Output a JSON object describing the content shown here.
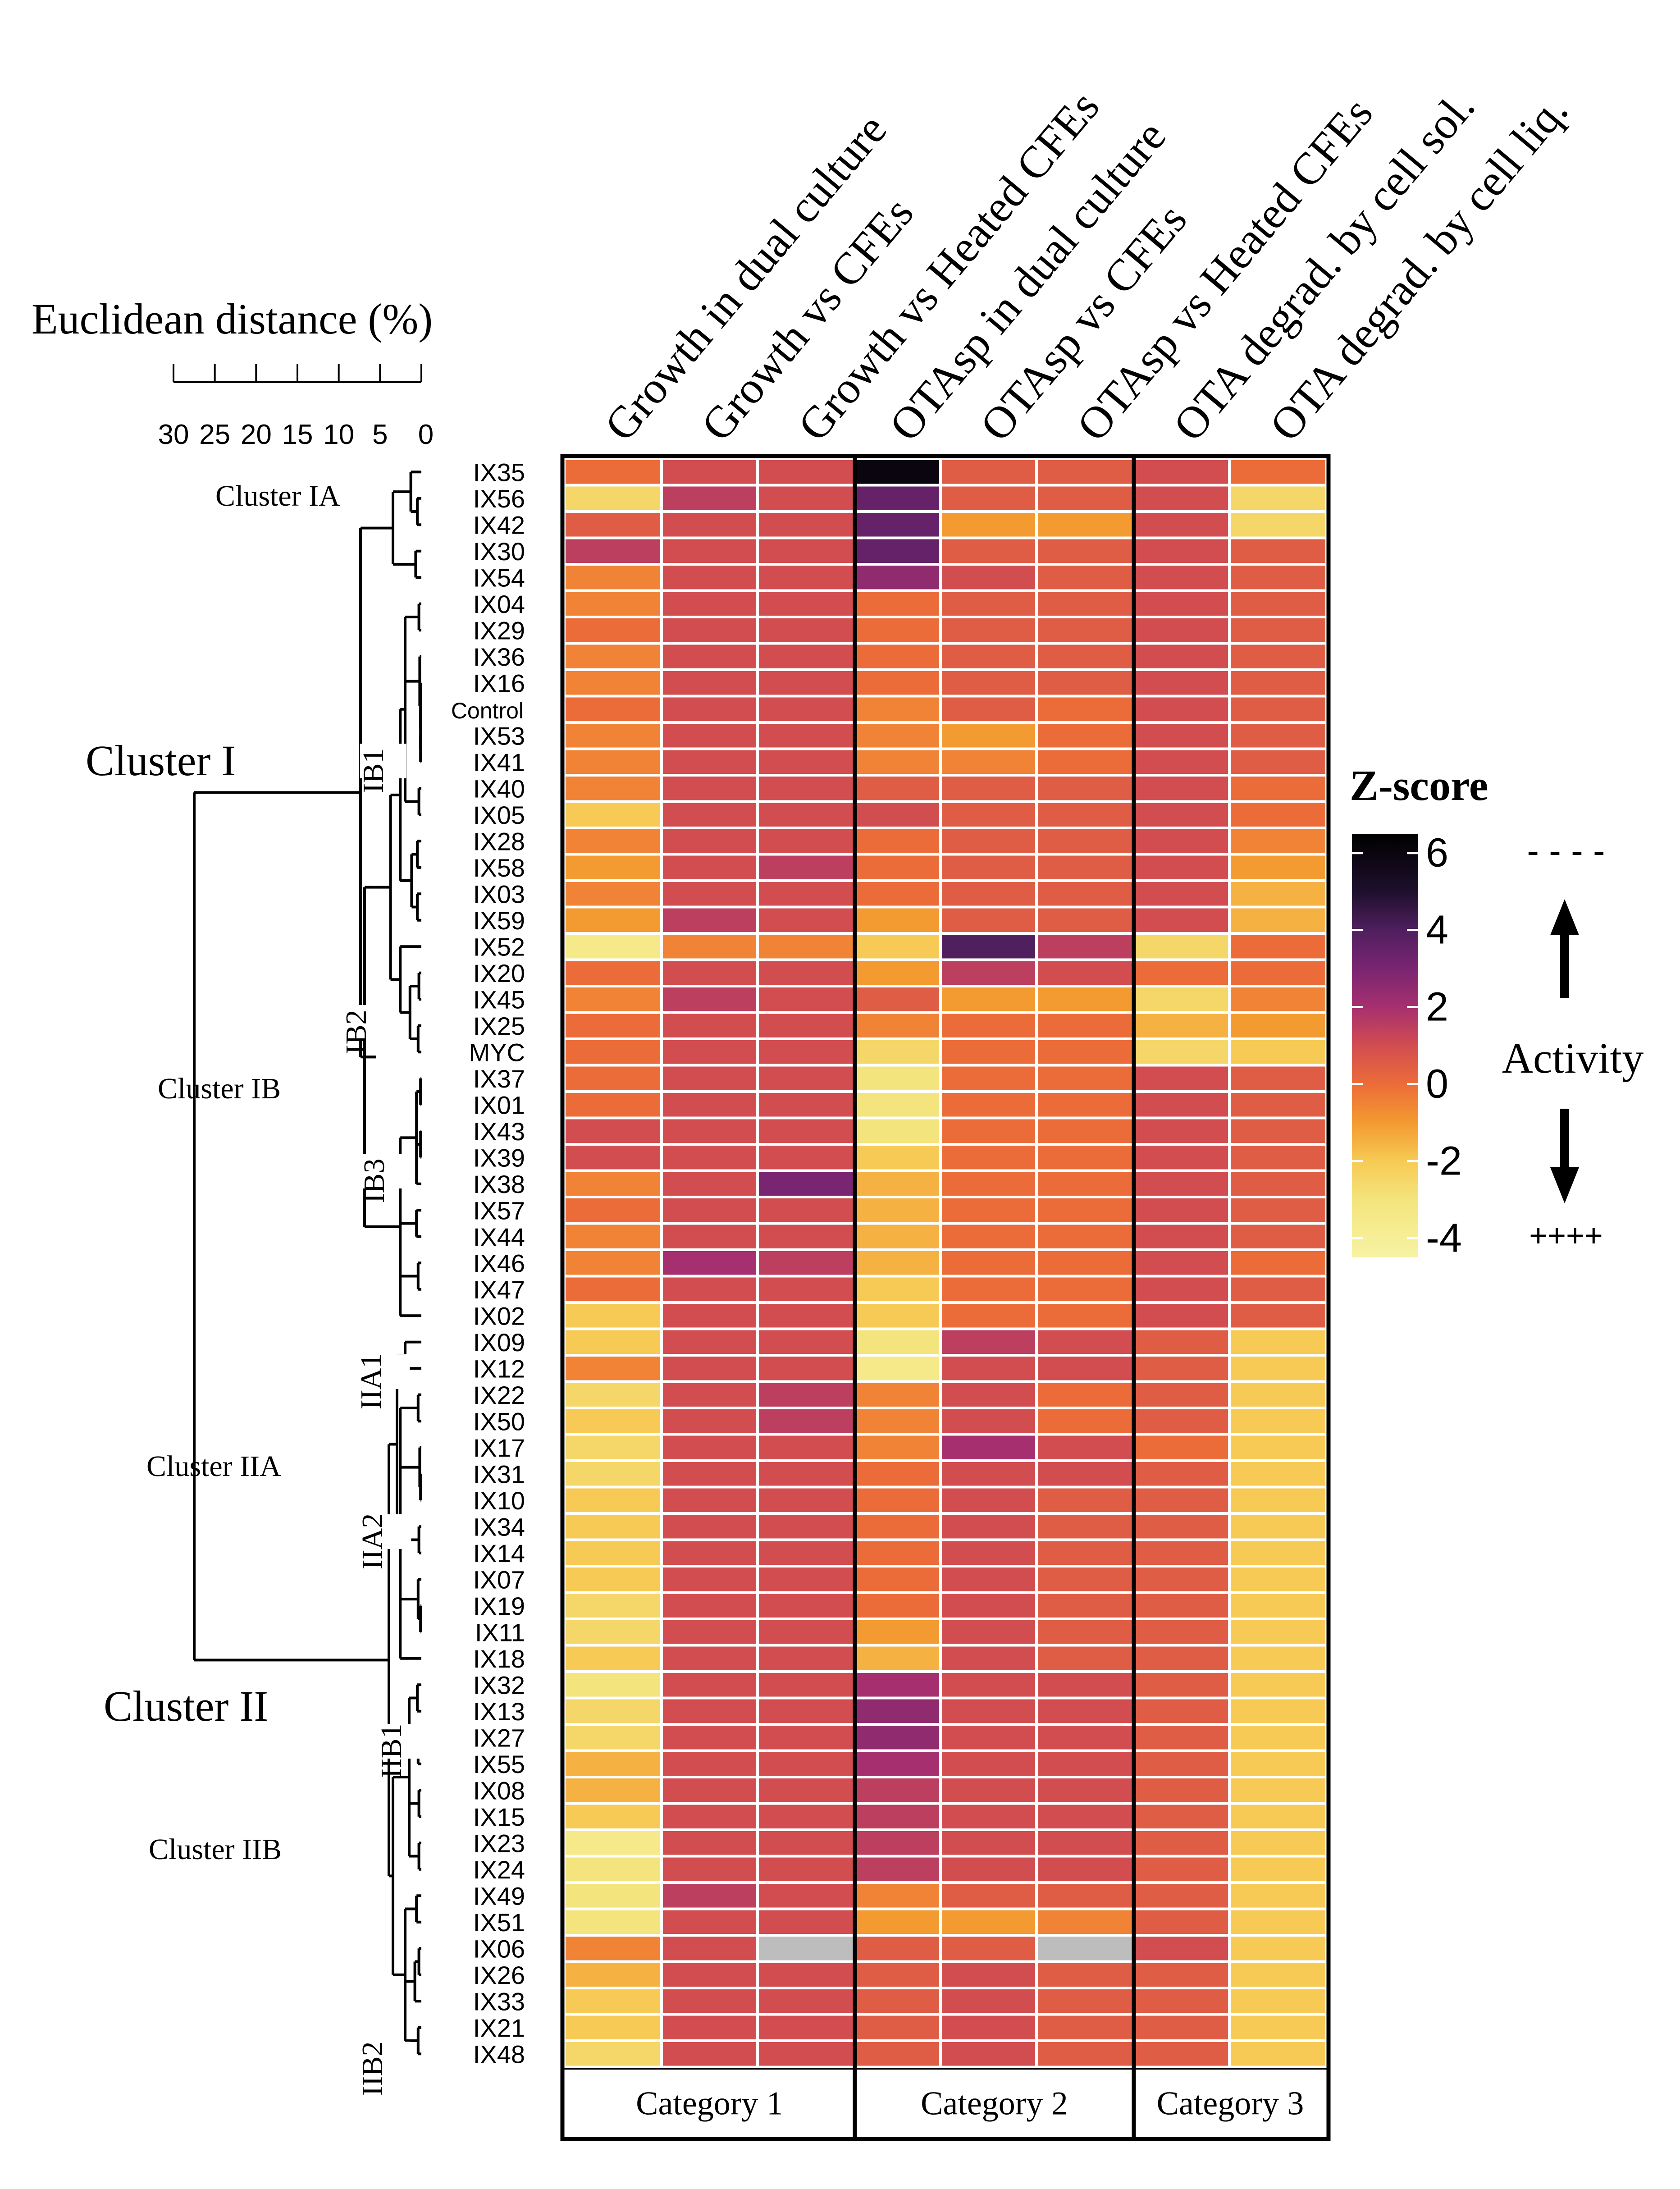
{
  "chart_data": {
    "type": "heatmap",
    "title": "",
    "columns": [
      "Growth in dual culture",
      "Growth vs CFEs",
      "Growth vs Heated CFEs",
      "OTAsp in dual culture",
      "OTAsp vs CFEs",
      "OTAsp vs Heated CFEs",
      "OTA degrad. by cell sol.",
      "OTA degrad. by cell liq."
    ],
    "categories": [
      {
        "label": "Category 1",
        "columns": [
          0,
          1,
          2
        ]
      },
      {
        "label": "Category 2",
        "columns": [
          3,
          4,
          5
        ]
      },
      {
        "label": "Category 3",
        "columns": [
          6,
          7
        ]
      }
    ],
    "rows": [
      "IX35",
      "IX56",
      "IX42",
      "IX30",
      "IX54",
      "IX04",
      "IX29",
      "IX36",
      "IX16",
      "Control",
      "IX53",
      "IX41",
      "IX40",
      "IX05",
      "IX28",
      "IX58",
      "IX03",
      "IX59",
      "IX52",
      "IX20",
      "IX45",
      "IX25",
      "MYC",
      "IX37",
      "IX01",
      "IX43",
      "IX39",
      "IX38",
      "IX57",
      "IX44",
      "IX46",
      "IX47",
      "IX02",
      "IX09",
      "IX12",
      "IX22",
      "IX50",
      "IX17",
      "IX31",
      "IX10",
      "IX34",
      "IX14",
      "IX07",
      "IX19",
      "IX11",
      "IX18",
      "IX32",
      "IX13",
      "IX27",
      "IX55",
      "IX08",
      "IX15",
      "IX23",
      "IX24",
      "IX49",
      "IX51",
      "IX06",
      "IX26",
      "IX33",
      "IX21",
      "IX48"
    ],
    "values": [
      [
        0,
        1,
        1,
        6,
        0.5,
        0.5,
        1,
        0
      ],
      [
        -2.5,
        1.5,
        1,
        3.5,
        0.5,
        0.5,
        1,
        -2.5
      ],
      [
        0.5,
        1,
        1,
        3.5,
        -1,
        -1,
        1,
        -2.5
      ],
      [
        1.5,
        1,
        1,
        3.5,
        0.5,
        0.5,
        1,
        0.5
      ],
      [
        -0.5,
        1,
        1,
        2.5,
        1,
        0.5,
        1,
        0.5
      ],
      [
        -0.5,
        1,
        1,
        0,
        0.5,
        0.5,
        1,
        0.5
      ],
      [
        0,
        1,
        1,
        0,
        0.5,
        0.5,
        1,
        0.5
      ],
      [
        -0.5,
        1,
        1,
        0,
        0.5,
        0.5,
        1,
        0.5
      ],
      [
        -0.5,
        1,
        1,
        0,
        0.5,
        0.5,
        1,
        0.5
      ],
      [
        0,
        1,
        1,
        -0.5,
        0.5,
        0,
        1,
        0.5
      ],
      [
        -0.5,
        1,
        1,
        -0.5,
        -1,
        0,
        1,
        0.5
      ],
      [
        -0.5,
        1,
        1,
        -0.5,
        -0.5,
        0,
        1,
        0.5
      ],
      [
        -0.5,
        1,
        1,
        0.5,
        0.5,
        0.5,
        1,
        0
      ],
      [
        -2,
        1,
        1,
        1,
        0.5,
        0.5,
        1,
        0
      ],
      [
        -0.5,
        1,
        1,
        0,
        0.5,
        0.5,
        1,
        -0.5
      ],
      [
        -1,
        1,
        1.5,
        0,
        0.5,
        0.5,
        1,
        -1
      ],
      [
        -0.5,
        1,
        1,
        0,
        0.5,
        0.5,
        1,
        -1.5
      ],
      [
        -1,
        1.5,
        1,
        -1,
        0.5,
        0.5,
        1,
        -1.5
      ],
      [
        -3.5,
        -0.5,
        -0.5,
        -2,
        4,
        1.5,
        -2.5,
        0
      ],
      [
        0,
        1,
        1,
        -1,
        1.5,
        1,
        0,
        0
      ],
      [
        -0.5,
        1.5,
        1,
        0.5,
        -1,
        -1,
        -2.5,
        -0.5
      ],
      [
        0,
        1,
        1,
        -0.5,
        0,
        0,
        -1.5,
        -1
      ],
      [
        0,
        1,
        1,
        -2.5,
        0,
        0,
        -2.5,
        -2
      ],
      [
        0,
        1,
        1,
        -3,
        0,
        0,
        1,
        0.5
      ],
      [
        0,
        1,
        1,
        -3,
        0,
        0,
        1,
        0.5
      ],
      [
        1,
        1,
        1,
        -3,
        0,
        0,
        1,
        0.5
      ],
      [
        1,
        1,
        1,
        -2,
        0,
        0,
        1,
        0.5
      ],
      [
        -0.5,
        1,
        3,
        -1.5,
        0,
        0,
        1,
        0.5
      ],
      [
        0,
        1,
        1,
        -1.5,
        0,
        0,
        1,
        0.5
      ],
      [
        -0.5,
        1,
        1,
        -1.5,
        0,
        0,
        1,
        0.5
      ],
      [
        -0.5,
        2,
        1.5,
        -1.5,
        0,
        0,
        1,
        0
      ],
      [
        0,
        1,
        1,
        -2,
        0,
        0,
        1,
        0.5
      ],
      [
        -2,
        1,
        1,
        -2,
        0,
        0,
        1,
        0.5
      ],
      [
        -2,
        1,
        1,
        -3,
        1.5,
        1,
        0.5,
        -2
      ],
      [
        -0.5,
        1,
        1,
        -3.5,
        1,
        1,
        0.5,
        -2
      ],
      [
        -2.5,
        1,
        1.5,
        -0.5,
        1,
        0,
        0.5,
        -2
      ],
      [
        -2,
        1,
        1.5,
        -0.5,
        1,
        0,
        0.5,
        -2
      ],
      [
        -2.5,
        1,
        1,
        -0.5,
        2,
        1,
        0,
        -2
      ],
      [
        -2.5,
        1,
        1,
        0,
        1,
        1,
        0.5,
        -2
      ],
      [
        -2,
        1,
        1,
        0,
        1,
        0.5,
        0.5,
        -2
      ],
      [
        -2,
        1,
        1,
        0,
        1,
        0.5,
        0.5,
        -2
      ],
      [
        -2,
        1,
        1,
        0,
        1,
        0.5,
        0.5,
        -2
      ],
      [
        -2,
        1,
        1,
        0,
        1,
        0.5,
        0.5,
        -2
      ],
      [
        -2.5,
        1,
        1,
        0,
        1,
        0.5,
        0.5,
        -2
      ],
      [
        -2.5,
        1,
        1,
        -1,
        1,
        0.5,
        0.5,
        -2
      ],
      [
        -2,
        1,
        1,
        -1.5,
        1,
        0.5,
        0.5,
        -2
      ],
      [
        -3,
        1,
        1,
        2,
        1,
        1,
        0.5,
        -2
      ],
      [
        -2.5,
        1,
        1,
        2.5,
        1,
        1,
        0.5,
        -2
      ],
      [
        -2.5,
        1,
        1,
        2.5,
        1,
        1,
        0.5,
        -2
      ],
      [
        -1.5,
        1,
        1,
        2,
        1,
        1,
        0.5,
        -2
      ],
      [
        -1.5,
        1,
        1,
        1.5,
        1,
        1,
        0.5,
        -2
      ],
      [
        -2,
        1,
        1,
        1.5,
        1,
        1,
        0.5,
        -2
      ],
      [
        -3.5,
        1,
        1,
        1.5,
        1,
        1,
        0.5,
        -2
      ],
      [
        -3,
        1,
        1,
        1.5,
        1,
        1,
        0.5,
        -2
      ],
      [
        -3,
        1.5,
        1,
        -0.5,
        0.5,
        0.5,
        0.5,
        -2
      ],
      [
        -3,
        1,
        1,
        -1,
        -1,
        -0.5,
        0.5,
        -2
      ],
      [
        -0.5,
        1,
        null,
        0.5,
        0.5,
        null,
        1,
        -2
      ],
      [
        -1.5,
        1,
        1,
        0.5,
        1,
        0.5,
        0.5,
        -2
      ],
      [
        -2,
        1,
        1,
        0.5,
        1,
        0.5,
        0.5,
        -2
      ],
      [
        -2,
        1,
        1,
        0.5,
        1,
        0.5,
        0.5,
        -2
      ],
      [
        -2.5,
        1,
        1,
        0.5,
        1,
        0.5,
        0.5,
        -2
      ]
    ],
    "missing_color": "#bdbdbd",
    "dendrogram": {
      "title": "Euclidean distance (%)",
      "scale_ticks": [
        "30",
        "25",
        "20",
        "15",
        "10",
        "5",
        "0"
      ],
      "scale_values": [
        30,
        25,
        20,
        15,
        10,
        5,
        0
      ],
      "clusters": [
        {
          "label": "Cluster I",
          "rows": [
            0,
            32
          ]
        },
        {
          "label": "Cluster II",
          "rows": [
            33,
            60
          ]
        },
        {
          "label": "Cluster IA",
          "rows": [
            0,
            4
          ]
        },
        {
          "label": "Cluster IB",
          "rows": [
            5,
            32
          ]
        },
        {
          "label": "Cluster IIA",
          "rows": [
            33,
            45
          ]
        },
        {
          "label": "Cluster IIB",
          "rows": [
            46,
            60
          ]
        },
        {
          "label": "IB1",
          "rows": [
            5,
            17
          ]
        },
        {
          "label": "IB2",
          "rows": [
            18,
            22
          ]
        },
        {
          "label": "IB3",
          "rows": [
            23,
            32
          ]
        },
        {
          "label": "IIA1",
          "rows": [
            33,
            34
          ]
        },
        {
          "label": "IIA2",
          "rows": [
            35,
            45
          ]
        },
        {
          "label": "IIB1",
          "rows": [
            46,
            53
          ]
        },
        {
          "label": "IIB2",
          "rows": [
            54,
            60
          ]
        }
      ]
    },
    "legend": {
      "title": "Z-score",
      "ticks": [
        "6",
        "4",
        "2",
        "0",
        "-2",
        "-4"
      ],
      "tick_values": [
        6,
        4,
        2,
        0,
        -2,
        -4
      ],
      "range": [
        -4.5,
        6.5
      ],
      "color_stops": [
        {
          "value": -4.5,
          "color": "#f7f3a4"
        },
        {
          "value": -3,
          "color": "#f4e47d"
        },
        {
          "value": -2,
          "color": "#f6ca54"
        },
        {
          "value": -1,
          "color": "#f39a30"
        },
        {
          "value": 0,
          "color": "#ec6c39"
        },
        {
          "value": 1,
          "color": "#d24d50"
        },
        {
          "value": 2,
          "color": "#a6306f"
        },
        {
          "value": 3,
          "color": "#7a2571"
        },
        {
          "value": 4,
          "color": "#4f1f5e"
        },
        {
          "value": 5,
          "color": "#1e0f2d"
        },
        {
          "value": 6.5,
          "color": "#000000"
        }
      ],
      "activity_label": "Activity",
      "top_marker": "- - - -",
      "bottom_marker": "++++"
    }
  }
}
